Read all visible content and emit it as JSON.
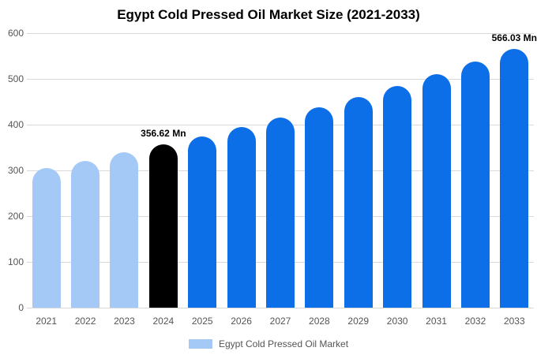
{
  "chart_data": {
    "type": "bar",
    "title": "Egypt Cold Pressed Oil Market Size (2021-2033)",
    "categories": [
      "2021",
      "2022",
      "2023",
      "2024",
      "2025",
      "2026",
      "2027",
      "2028",
      "2029",
      "2030",
      "2031",
      "2032",
      "2033"
    ],
    "values": [
      305,
      321,
      339,
      356.62,
      375,
      395,
      416,
      438,
      461,
      485,
      511,
      538,
      566.03
    ],
    "bar_colors": [
      "#a4c9f7",
      "#a4c9f7",
      "#a4c9f7",
      "#000000",
      "#0d6fe8",
      "#0d6fe8",
      "#0d6fe8",
      "#0d6fe8",
      "#0d6fe8",
      "#0d6fe8",
      "#0d6fe8",
      "#0d6fe8",
      "#0d6fe8"
    ],
    "annotations": [
      {
        "index": 3,
        "text": "356.62 Mn"
      },
      {
        "index": 12,
        "text": "566.03 Mn"
      }
    ],
    "xlabel": "",
    "ylabel": "",
    "ylim": [
      0,
      600
    ],
    "yticks": [
      0,
      100,
      200,
      300,
      400,
      500,
      600
    ],
    "grid": "horizontal",
    "legend_position": "bottom",
    "legend": [
      {
        "label": "Egypt Cold Pressed Oil Market",
        "color": "#a4c9f7"
      }
    ]
  }
}
